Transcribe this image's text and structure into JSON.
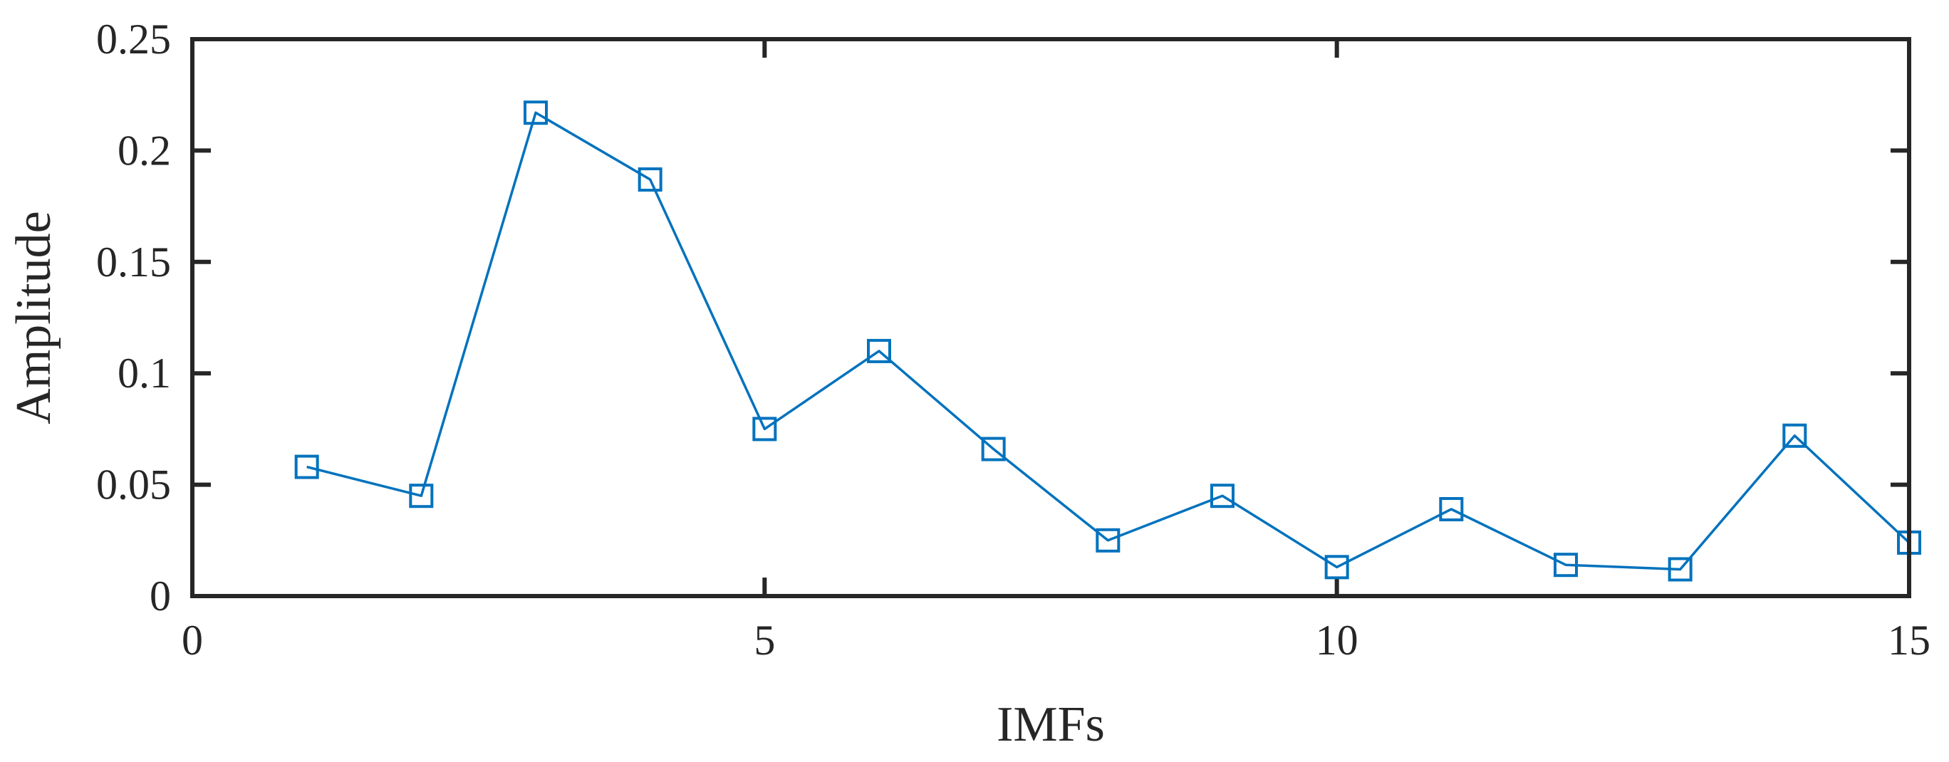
{
  "chart_data": {
    "type": "line",
    "title": "",
    "xlabel": "IMFs",
    "ylabel": "Amplitude",
    "xlim": [
      0,
      15
    ],
    "ylim": [
      0,
      0.25
    ],
    "xticks": [
      0,
      5,
      10,
      15
    ],
    "xtick_labels": [
      "0",
      "5",
      "10",
      "15"
    ],
    "yticks": [
      0,
      0.05,
      0.1,
      0.15,
      0.2,
      0.25
    ],
    "ytick_labels": [
      "0",
      "0.05",
      "0.1",
      "0.15",
      "0.2",
      "0.25"
    ],
    "grid": false,
    "box": true,
    "series": [
      {
        "marker": "square",
        "color": "#0072BD",
        "x": [
          1,
          2,
          3,
          4,
          5,
          6,
          7,
          8,
          9,
          10,
          11,
          12,
          13,
          14,
          15
        ],
        "y": [
          0.058,
          0.045,
          0.217,
          0.187,
          0.075,
          0.11,
          0.066,
          0.025,
          0.045,
          0.013,
          0.039,
          0.014,
          0.012,
          0.072,
          0.024
        ]
      }
    ]
  },
  "colors": {
    "axis": "#262626",
    "series": "#0072BD"
  }
}
